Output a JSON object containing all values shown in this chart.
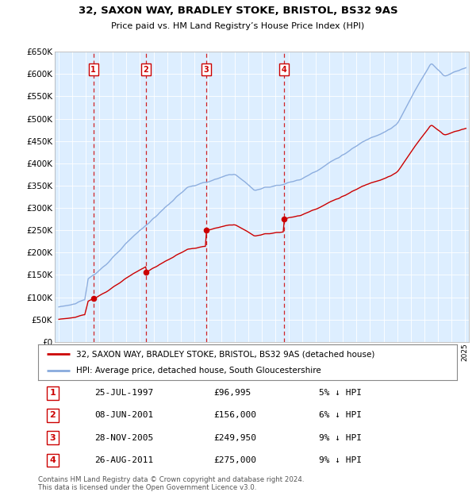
{
  "title1": "32, SAXON WAY, BRADLEY STOKE, BRISTOL, BS32 9AS",
  "title2": "Price paid vs. HM Land Registry’s House Price Index (HPI)",
  "footer": "Contains HM Land Registry data © Crown copyright and database right 2024.\nThis data is licensed under the Open Government Licence v3.0.",
  "legend_line1": "32, SAXON WAY, BRADLEY STOKE, BRISTOL, BS32 9AS (detached house)",
  "legend_line2": "HPI: Average price, detached house, South Gloucestershire",
  "sales": [
    {
      "num": 1,
      "date": "25-JUL-1997",
      "year": 1997.56,
      "price": 96995
    },
    {
      "num": 2,
      "date": "08-JUN-2001",
      "year": 2001.44,
      "price": 156000
    },
    {
      "num": 3,
      "date": "28-NOV-2005",
      "year": 2005.91,
      "price": 249950
    },
    {
      "num": 4,
      "date": "26-AUG-2011",
      "year": 2011.65,
      "price": 275000
    }
  ],
  "hpi_color": "#88aadd",
  "price_color": "#cc0000",
  "vline_color": "#cc0000",
  "plot_bg": "#ddeeff",
  "grid_color": "#bbbbcc",
  "ylim": [
    0,
    650000
  ],
  "xlim_start": 1994.7,
  "xlim_end": 2025.3,
  "ytick_step": 50000,
  "table_rows": [
    [
      "1",
      "25-JUL-1997",
      "£96,995",
      "5% ↓ HPI"
    ],
    [
      "2",
      "08-JUN-2001",
      "£156,000",
      "6% ↓ HPI"
    ],
    [
      "3",
      "28-NOV-2005",
      "£249,950",
      "9% ↓ HPI"
    ],
    [
      "4",
      "26-AUG-2011",
      "£275,000",
      "9% ↓ HPI"
    ]
  ]
}
